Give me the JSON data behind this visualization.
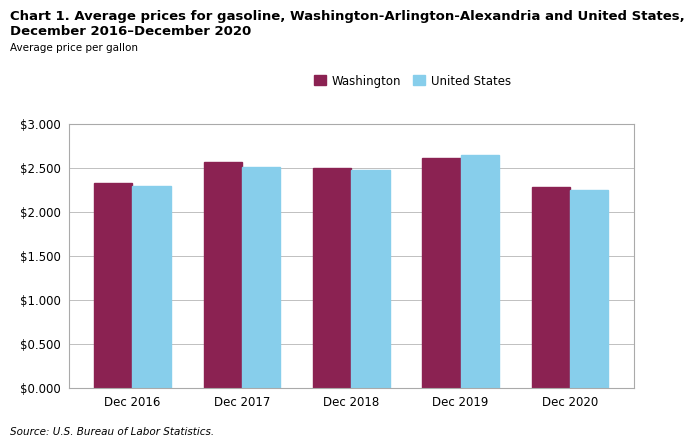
{
  "title_line1": "Chart 1. Average prices for gasoline, Washington-Arlington-Alexandria and United States,",
  "title_line2": "December 2016–December 2020",
  "ylabel": "Average price per gallon",
  "categories": [
    "Dec 2016",
    "Dec 2017",
    "Dec 2018",
    "Dec 2019",
    "Dec 2020"
  ],
  "washington": [
    2.33,
    2.558,
    2.5,
    2.61,
    2.275
  ],
  "united_states": [
    2.29,
    2.508,
    2.475,
    2.64,
    2.25
  ],
  "washington_color": "#8B2252",
  "us_color": "#87CEEB",
  "washington_label": "Washington",
  "us_label": "United States",
  "ylim": [
    0.0,
    3.0
  ],
  "yticks": [
    0.0,
    0.5,
    1.0,
    1.5,
    2.0,
    2.5,
    3.0
  ],
  "source": "Source: U.S. Bureau of Labor Statistics.",
  "bar_width": 0.35,
  "grid_color": "#C0C0C0",
  "background_color": "#FFFFFF",
  "title_fontsize": 9.5,
  "axis_label_fontsize": 7.5,
  "tick_fontsize": 8.5,
  "legend_fontsize": 8.5,
  "source_fontsize": 7.5,
  "spine_color": "#AAAAAA"
}
